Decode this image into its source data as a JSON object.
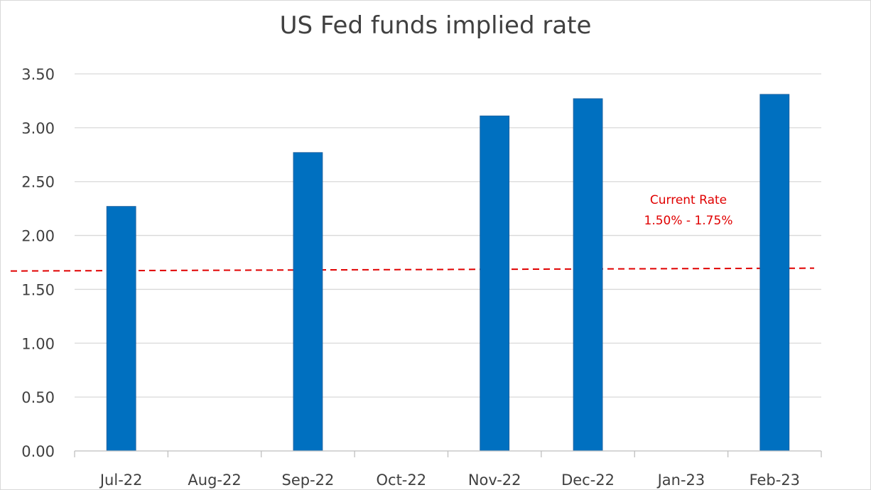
{
  "chart_data": {
    "type": "bar",
    "title": "US Fed funds implied rate",
    "xlabel": "",
    "ylabel": "",
    "categories": [
      "Jul-22",
      "Aug-22",
      "Sep-22",
      "Oct-22",
      "Nov-22",
      "Dec-22",
      "Jan-23",
      "Feb-23"
    ],
    "values": [
      2.27,
      null,
      2.77,
      null,
      3.11,
      3.27,
      null,
      3.31
    ],
    "ylim": [
      0,
      3.5
    ],
    "yticks": [
      "0.00",
      "0.50",
      "1.00",
      "1.50",
      "2.00",
      "2.50",
      "3.00",
      "3.50"
    ],
    "grid": true,
    "bar_color": "#0070c0",
    "reference_line": {
      "value": 1.68,
      "style": "dashed",
      "color": "#e00000"
    },
    "annotation": {
      "lines": [
        "Current Rate",
        "1.50% - 1.75%"
      ],
      "color": "#e00000"
    }
  }
}
